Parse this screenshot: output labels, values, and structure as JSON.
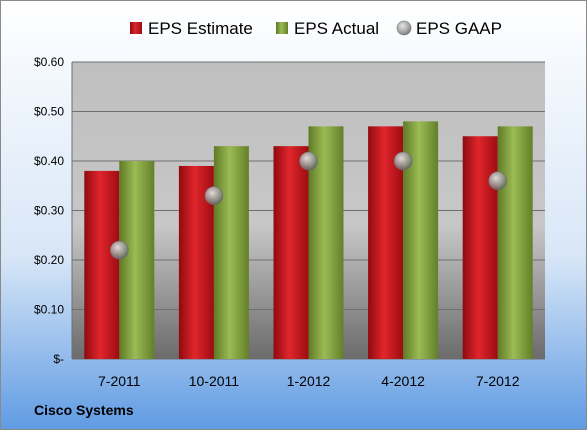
{
  "chart_data": {
    "type": "bar",
    "company": "Cisco Systems",
    "categories": [
      "7-2011",
      "10-2011",
      "1-2012",
      "4-2012",
      "7-2012"
    ],
    "series": [
      {
        "name": "EPS Estimate",
        "kind": "bar",
        "color": "#c0141c",
        "values": [
          0.38,
          0.39,
          0.43,
          0.47,
          0.45
        ]
      },
      {
        "name": "EPS Actual",
        "kind": "bar",
        "color": "#7f9e3a",
        "values": [
          0.4,
          0.43,
          0.47,
          0.48,
          0.47
        ]
      },
      {
        "name": "EPS GAAP",
        "kind": "marker",
        "color": "#a0a0a0",
        "values": [
          0.22,
          0.33,
          0.4,
          0.4,
          0.36
        ]
      }
    ],
    "ylim": [
      0,
      0.6
    ],
    "yticks": [
      {
        "value": 0.6,
        "label": "$0.60"
      },
      {
        "value": 0.5,
        "label": "$0.50"
      },
      {
        "value": 0.4,
        "label": "$0.40"
      },
      {
        "value": 0.3,
        "label": "$0.30"
      },
      {
        "value": 0.2,
        "label": "$0.20"
      },
      {
        "value": 0.1,
        "label": "$0.10"
      },
      {
        "value": 0.0,
        "label": "$-"
      }
    ],
    "grid": true,
    "legend_position": "top"
  }
}
